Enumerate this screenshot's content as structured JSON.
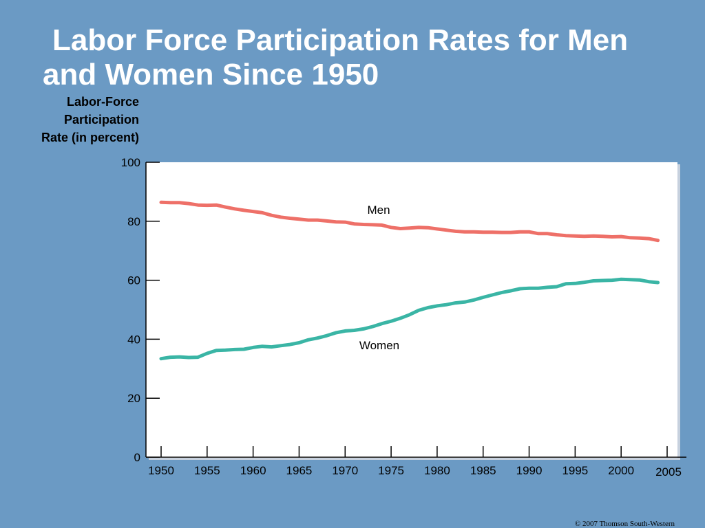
{
  "slide": {
    "title_line1": "Labor Force Participation Rates for Men",
    "title_line2": "and Women Since 1950",
    "copyright": "© 2007 Thomson South-Western"
  },
  "chart_data": {
    "type": "line",
    "title": "Labor Force Participation Rates for Men and Women Since 1950",
    "ylabel_lines": [
      "Labor-Force",
      "Participation",
      "Rate (in percent)"
    ],
    "xlabel": "",
    "ylim": [
      0,
      100
    ],
    "xlim": [
      1950,
      2005
    ],
    "y_ticks": [
      0,
      20,
      40,
      60,
      80,
      100
    ],
    "x_ticks": [
      1950,
      1955,
      1960,
      1965,
      1970,
      1975,
      1980,
      1985,
      1990,
      1995,
      2000,
      2005
    ],
    "grid": false,
    "legend": "inline labels",
    "x": [
      1950,
      1951,
      1952,
      1953,
      1954,
      1955,
      1956,
      1957,
      1958,
      1959,
      1960,
      1961,
      1962,
      1963,
      1964,
      1965,
      1966,
      1967,
      1968,
      1969,
      1970,
      1971,
      1972,
      1973,
      1974,
      1975,
      1976,
      1977,
      1978,
      1979,
      1980,
      1981,
      1982,
      1983,
      1984,
      1985,
      1986,
      1987,
      1988,
      1989,
      1990,
      1991,
      1992,
      1993,
      1994,
      1995,
      1996,
      1997,
      1998,
      1999,
      2000,
      2001,
      2002,
      2003,
      2004
    ],
    "series": [
      {
        "name": "Men",
        "color": "#ee7068",
        "values": [
          86.4,
          86.3,
          86.3,
          86.0,
          85.5,
          85.4,
          85.5,
          84.8,
          84.2,
          83.7,
          83.3,
          82.9,
          82.0,
          81.4,
          81.0,
          80.7,
          80.4,
          80.4,
          80.1,
          79.8,
          79.7,
          79.1,
          78.9,
          78.8,
          78.7,
          77.9,
          77.5,
          77.7,
          77.9,
          77.8,
          77.4,
          77.0,
          76.6,
          76.4,
          76.4,
          76.3,
          76.3,
          76.2,
          76.2,
          76.4,
          76.4,
          75.8,
          75.8,
          75.4,
          75.1,
          75.0,
          74.9,
          75.0,
          74.9,
          74.7,
          74.8,
          74.4,
          74.3,
          74.1,
          73.5
        ]
      },
      {
        "name": "Women",
        "color": "#3ab5a5",
        "values": [
          33.4,
          33.9,
          34.0,
          33.8,
          33.9,
          35.2,
          36.2,
          36.3,
          36.5,
          36.6,
          37.2,
          37.6,
          37.4,
          37.8,
          38.2,
          38.8,
          39.8,
          40.4,
          41.2,
          42.2,
          42.8,
          43.0,
          43.5,
          44.3,
          45.3,
          46.1,
          47.1,
          48.3,
          49.8,
          50.7,
          51.3,
          51.7,
          52.3,
          52.6,
          53.3,
          54.2,
          55.0,
          55.8,
          56.4,
          57.1,
          57.3,
          57.3,
          57.6,
          57.8,
          58.8,
          58.9,
          59.3,
          59.8,
          59.9,
          60.0,
          60.3,
          60.2,
          60.1,
          59.5,
          59.2
        ]
      }
    ]
  }
}
